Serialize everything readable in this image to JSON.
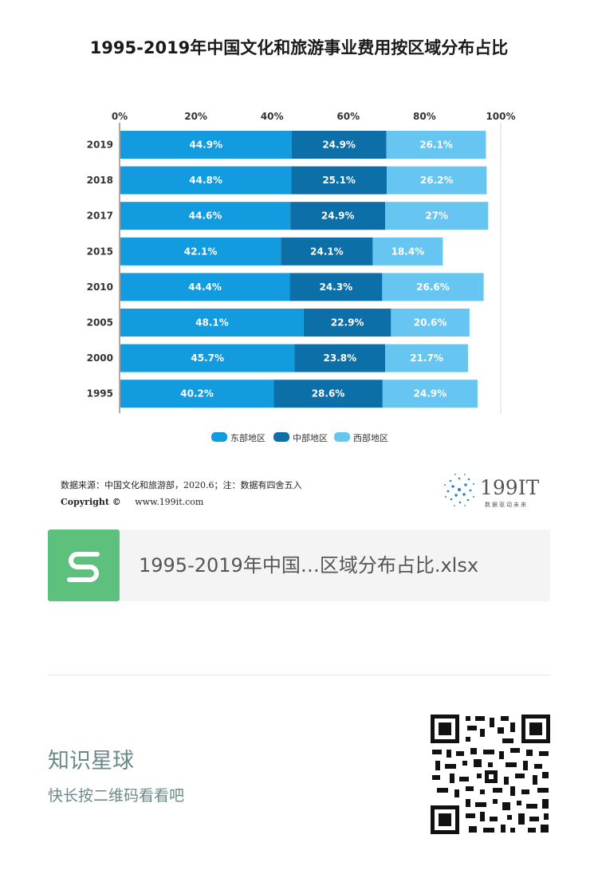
{
  "chart_data": {
    "type": "bar",
    "orientation": "horizontal",
    "stacked": true,
    "title": "1995-2019年中国文化和旅游事业费用按区域分布占比",
    "xlabel": "",
    "ylabel": "",
    "xlim": [
      0,
      100
    ],
    "x_ticks": [
      "0%",
      "20%",
      "40%",
      "60%",
      "80%",
      "100%"
    ],
    "categories": [
      "2019",
      "2018",
      "2017",
      "2015",
      "2010",
      "2005",
      "2000",
      "1995"
    ],
    "series": [
      {
        "name": "东部地区",
        "color": "#129bdf",
        "values": [
          44.9,
          44.8,
          44.6,
          42.1,
          44.4,
          48.1,
          45.7,
          40.2
        ],
        "labels": [
          "44.9%",
          "44.8%",
          "44.6%",
          "42.1%",
          "44.4%",
          "48.1%",
          "45.7%",
          "40.2%"
        ]
      },
      {
        "name": "中部地区",
        "color": "#0d6fa8",
        "values": [
          24.9,
          25.1,
          24.9,
          24.1,
          24.3,
          22.9,
          23.8,
          28.6
        ],
        "labels": [
          "24.9%",
          "25.1%",
          "24.9%",
          "24.1%",
          "24.3%",
          "22.9%",
          "23.8%",
          "28.6%"
        ]
      },
      {
        "name": "西部地区",
        "color": "#66c6f1",
        "values": [
          26.1,
          26.2,
          27,
          18.4,
          26.6,
          20.6,
          21.7,
          24.9
        ],
        "labels": [
          "26.1%",
          "26.2%",
          "27%",
          "18.4%",
          "26.6%",
          "20.6%",
          "21.7%",
          "24.9%"
        ]
      }
    ],
    "legend_position": "bottom-center"
  },
  "source": {
    "text": "数据来源：中国文化和旅游部，2020.6；注：数据有四舍五入",
    "copyright_label": "Copyright ©",
    "website": "www.199it.com"
  },
  "brand": {
    "name": "199IT",
    "tagline": "数据驱动未来"
  },
  "attachment": {
    "icon": "spreadsheet-s-icon",
    "filename": "1995-2019年中国…区域分布占比.xlsx"
  },
  "promo": {
    "title": "知识星球",
    "subtitle": "快长按二维码看看吧",
    "qr_icon": "qr-code-icon"
  }
}
